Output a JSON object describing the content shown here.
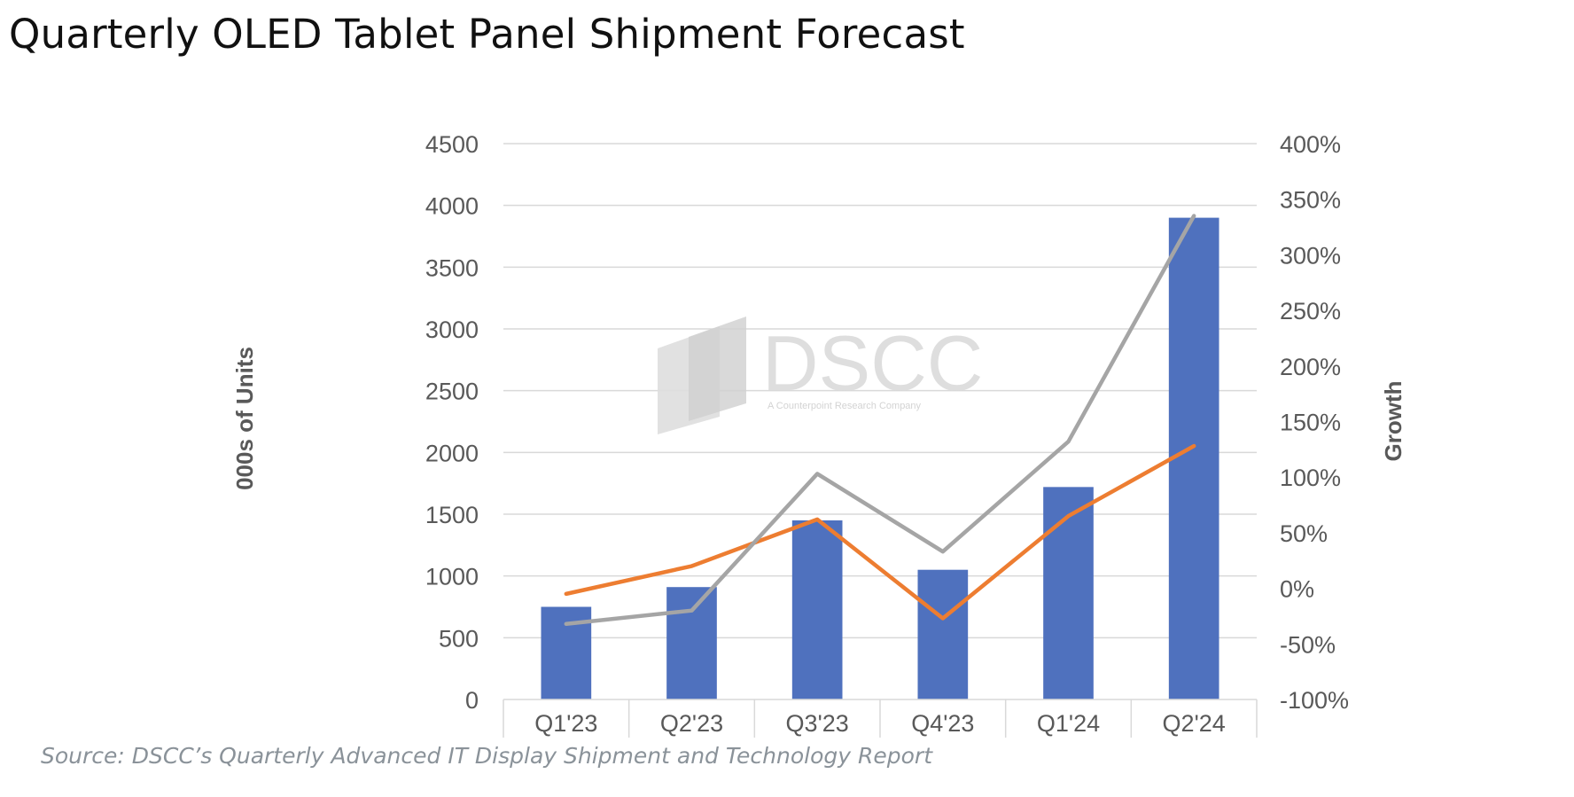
{
  "page": {
    "title": "Quarterly OLED Tablet Panel Shipment Forecast",
    "source": "Source: DSCC’s Quarterly Advanced IT Display Shipment and Technology Report"
  },
  "watermark": {
    "brand": "DSCC",
    "tagline": "A Counterpoint Research Company"
  },
  "chart_data": {
    "type": "bar",
    "categories": [
      "Q1'23",
      "Q2'23",
      "Q3'23",
      "Q4'23",
      "Q1'24",
      "Q2'24"
    ],
    "ylabel": "000s of Units",
    "y2label": "Growth",
    "ylim": [
      0,
      4500
    ],
    "y2lim": [
      -100,
      400
    ],
    "yticks": [
      "0",
      "500",
      "1000",
      "1500",
      "2000",
      "2500",
      "3000",
      "3500",
      "4000",
      "4500"
    ],
    "y2ticks": [
      "-100%",
      "-50%",
      "0%",
      "50%",
      "100%",
      "150%",
      "200%",
      "250%",
      "300%",
      "350%",
      "400%"
    ],
    "grid": true,
    "legend": "none",
    "series": [
      {
        "type": "bar",
        "axis": "left",
        "color": "#4f71be",
        "values": [
          750,
          910,
          1450,
          1050,
          1720,
          3900
        ]
      },
      {
        "type": "line",
        "axis": "right",
        "color": "#ed7d31",
        "values": [
          -5,
          20,
          62,
          -27,
          65,
          128
        ]
      },
      {
        "type": "line",
        "axis": "right",
        "color": "#a5a5a5",
        "values": [
          -32,
          -20,
          103,
          33,
          132,
          335
        ]
      }
    ]
  }
}
